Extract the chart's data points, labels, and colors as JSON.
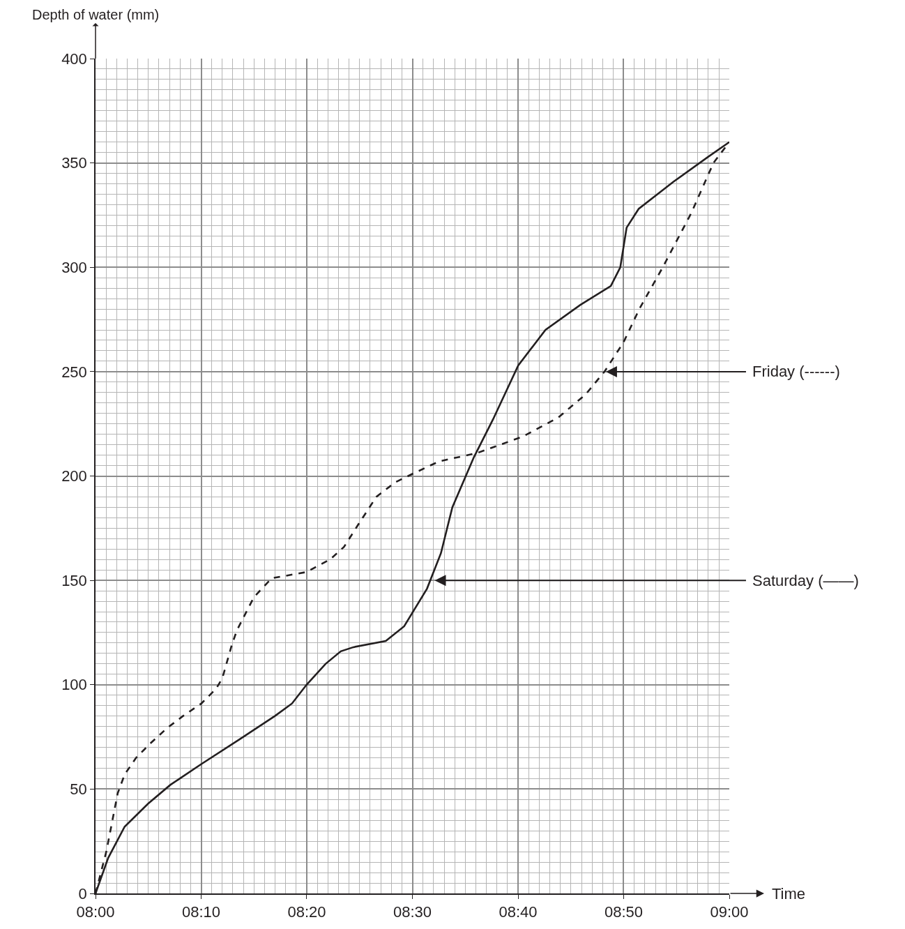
{
  "chart_data": {
    "type": "line",
    "xlabel": "Time",
    "ylabel": "Depth of water (mm)",
    "xlim": [
      8,
      9
    ],
    "xticks": [
      {
        "value": 8,
        "label": "08:00"
      },
      {
        "value": 8.1667,
        "label": "08:10"
      },
      {
        "value": 8.3333,
        "label": "08:20"
      },
      {
        "value": 8.5,
        "label": "08:30"
      },
      {
        "value": 8.6667,
        "label": "08:40"
      },
      {
        "value": 8.8333,
        "label": "08:50"
      },
      {
        "value": 9,
        "label": "09:00"
      }
    ],
    "ylim": [
      0,
      400
    ],
    "yticks": [
      0,
      50,
      100,
      150,
      200,
      250,
      300,
      350,
      400
    ],
    "grid": true,
    "marker": "none",
    "series": [
      {
        "color": "#231f20",
        "line_style": "dashed",
        "x": [
          8.0,
          8.017,
          8.035,
          8.046,
          8.064,
          8.087,
          8.112,
          8.138,
          8.167,
          8.19,
          8.2,
          8.215,
          8.223,
          8.25,
          8.278,
          8.333,
          8.37,
          8.392,
          8.413,
          8.443,
          8.473,
          8.5,
          8.542,
          8.602,
          8.675,
          8.73,
          8.773,
          8.803,
          8.833,
          8.858,
          8.895,
          8.94,
          8.975,
          9.0
        ],
        "values": [
          0,
          20,
          48,
          57,
          65,
          72,
          79,
          85,
          91,
          98,
          103,
          119,
          126,
          142,
          151,
          154,
          160,
          166,
          176,
          190,
          197,
          201,
          207,
          211,
          219,
          228,
          239,
          250,
          264,
          280,
          300,
          326,
          350,
          360
        ]
      },
      {
        "color": "#231f20",
        "line_style": "solid",
        "x": [
          8.0,
          8.02,
          8.046,
          8.083,
          8.118,
          8.167,
          8.228,
          8.283,
          8.31,
          8.333,
          8.363,
          8.387,
          8.407,
          8.458,
          8.487,
          8.523,
          8.545,
          8.563,
          8.597,
          8.627,
          8.667,
          8.71,
          8.765,
          8.813,
          8.828,
          8.838,
          8.857,
          8.912,
          8.967,
          9.0
        ],
        "values": [
          0,
          17,
          32,
          43,
          52,
          62,
          74,
          85,
          91,
          100,
          110,
          116,
          118,
          121,
          128,
          146,
          163,
          185,
          209,
          227,
          253,
          270,
          282,
          291,
          300,
          319,
          328,
          341,
          353,
          360
        ]
      }
    ],
    "annotations": [
      {
        "text": "Friday (------)",
        "x": 8.803,
        "y": 250
      },
      {
        "text": "Saturday (——)",
        "x": 8.533,
        "y": 150
      }
    ]
  }
}
